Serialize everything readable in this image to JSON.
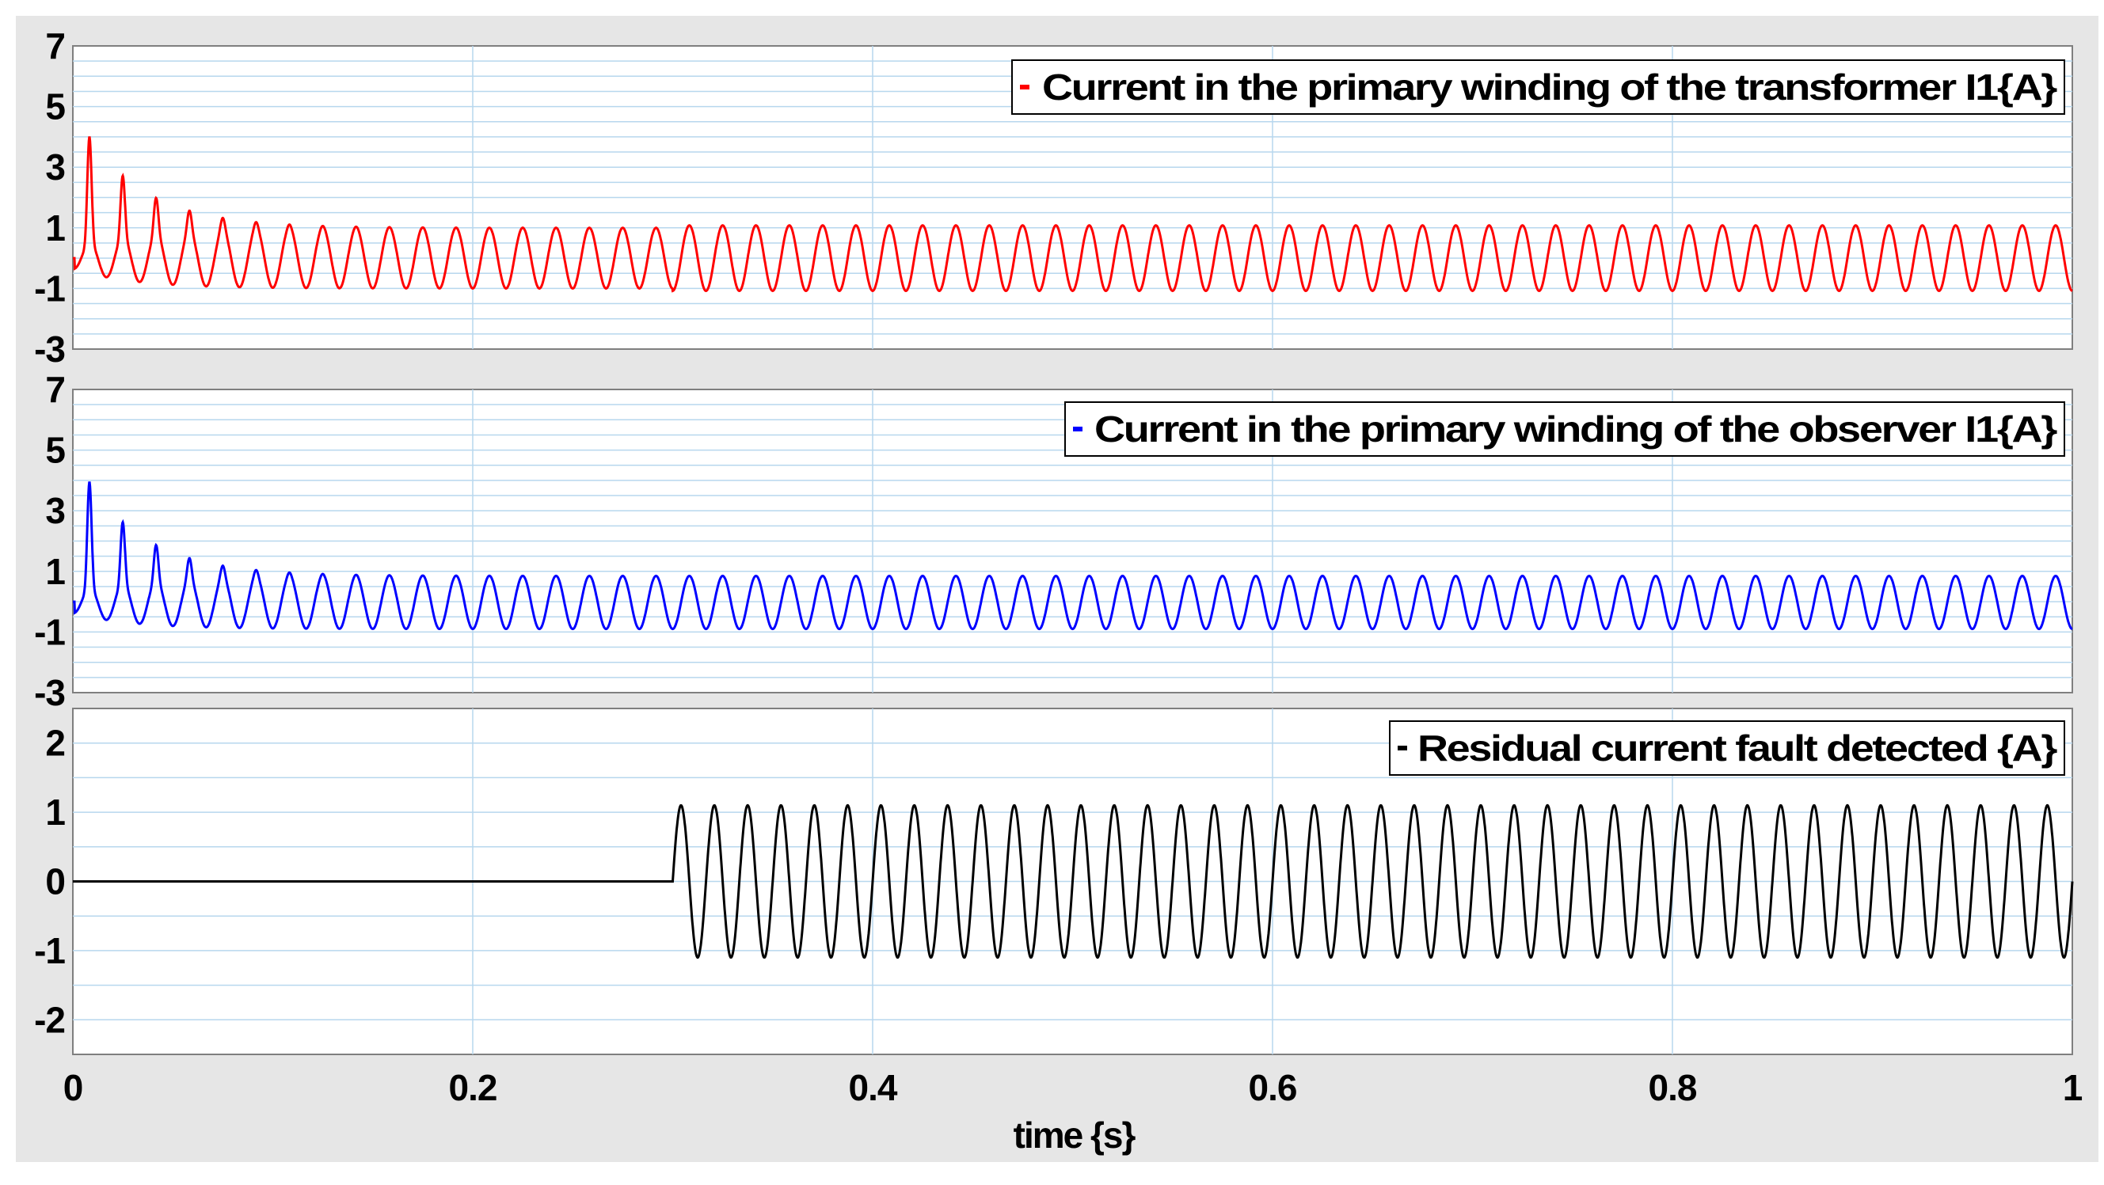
{
  "chart_data": [
    {
      "type": "line",
      "title": "",
      "xlabel": "",
      "ylabel": "",
      "xlim": [
        0,
        1
      ],
      "ylim": [
        -3,
        7
      ],
      "yticks": [
        "7",
        "5",
        "3",
        "1",
        "-1",
        "-3"
      ],
      "yticks_values": [
        7,
        5,
        3,
        1,
        -1,
        -3
      ],
      "grid": true,
      "legend_position": "top-right",
      "series": [
        {
          "name": "Current in the primary winding of the transformer I1{A}",
          "color": "#ff0000",
          "frequency_hz": 60,
          "inrush_peaks": [
            {
              "t": 0.008,
              "value": 5.1
            },
            {
              "t": 0.025,
              "value": 2.2
            },
            {
              "t": 0.042,
              "value": 1.5
            },
            {
              "t": 0.058,
              "value": 1.2
            },
            {
              "t": 0.075,
              "value": 1.1
            }
          ],
          "steady_state_range": [
            -1,
            1
          ],
          "fault_amplitude_after": {
            "t": 0.3,
            "value": 0.93
          }
        }
      ]
    },
    {
      "type": "line",
      "title": "",
      "xlabel": "",
      "ylabel": "",
      "xlim": [
        0,
        1
      ],
      "ylim": [
        -3,
        7
      ],
      "yticks": [
        "7",
        "5",
        "3",
        "1",
        "-1",
        "-3"
      ],
      "yticks_values": [
        7,
        5,
        3,
        1,
        -1,
        -3
      ],
      "grid": true,
      "legend_position": "top-right",
      "series": [
        {
          "name": "Current in the primary winding of the observer I1{A}",
          "color": "#0000ff",
          "frequency_hz": 60,
          "inrush_peaks": [
            {
              "t": 0.008,
              "value": 5.1
            },
            {
              "t": 0.025,
              "value": 2.2
            },
            {
              "t": 0.042,
              "value": 1.5
            },
            {
              "t": 0.058,
              "value": 1.2
            },
            {
              "t": 0.075,
              "value": 1.1
            }
          ],
          "steady_state_range": [
            -0.9,
            0.85
          ]
        }
      ]
    },
    {
      "type": "line",
      "title": "",
      "xlabel": "time {s}",
      "ylabel": "",
      "xlim": [
        0,
        1
      ],
      "ylim": [
        -2.5,
        2.5
      ],
      "yticks": [
        "2",
        "1",
        "0",
        "-1",
        "-2"
      ],
      "yticks_values": [
        2,
        1,
        0,
        -1,
        -2
      ],
      "xticks": [
        "0",
        "0.2",
        "0.4",
        "0.6",
        "0.8",
        "1"
      ],
      "xticks_values": [
        0,
        0.2,
        0.4,
        0.6,
        0.8,
        1
      ],
      "grid": true,
      "legend_position": "top-right",
      "series": [
        {
          "name": "Residual current fault detected {A}",
          "color": "#000000",
          "frequency_hz": 60,
          "fault_start_t": 0.3,
          "amplitude": 1.1,
          "value_before_fault": 0
        }
      ]
    }
  ]
}
